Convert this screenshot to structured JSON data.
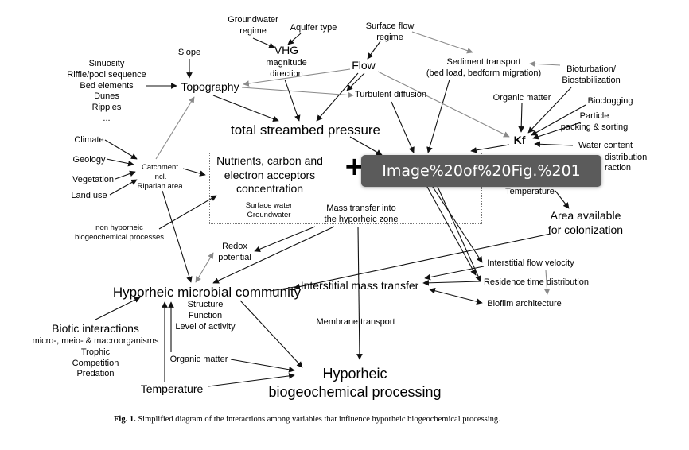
{
  "diagram": {
    "tooltip": "Image%20of%20Fig.%201",
    "plus": "+",
    "caption": {
      "prefix": "Fig. 1.",
      "text": " Simplified diagram of the interactions among variables that influence hyporheic biogeochemical processing."
    },
    "nodes": {
      "groundwater_regime": [
        "Groundwater",
        "regime"
      ],
      "aquifer_type": "Aquifer type",
      "vhg": "VHG",
      "vhg_sub": [
        "magnitude",
        "direction"
      ],
      "surface_flow_regime": [
        "Surface flow",
        "regime"
      ],
      "flow": "Flow",
      "sediment_transport": [
        "Sediment transport",
        "(bed load, bedform migration)"
      ],
      "bioturbation": [
        "Bioturbation/",
        "Biostabilization"
      ],
      "slope": "Slope",
      "morphology": [
        "Sinuosity",
        "Riffle/pool sequence",
        "Bed elements",
        "Dunes",
        "Ripples",
        "..."
      ],
      "topography": "Topography",
      "turbulent_diffusion": "Turbulent diffusion",
      "organic_matter_top": "Organic matter",
      "bioclogging": "Bioclogging",
      "particle_packing": [
        "Particle",
        "packing & sorting"
      ],
      "total_streambed_pressure": "total streambed pressure",
      "kf": "Kf",
      "water_content": "Water content",
      "distribution": "distribution",
      "fraction": "raction",
      "climate": "Climate",
      "geology": "Geology",
      "vegetation": "Vegetation",
      "land_use": "Land use",
      "catchment": [
        "Catchment",
        "incl.",
        "Riparian area"
      ],
      "nutrients": [
        "Nutrients, carbon and",
        "electron acceptors",
        "concentration"
      ],
      "nutrients_sub": [
        "Surface water",
        "Groundwater"
      ],
      "mass_transfer": [
        "Mass transfer into",
        "the hyporheic zone"
      ],
      "temperature_top": "Temperature",
      "area_available": [
        "Area available",
        "for colonization"
      ],
      "non_hyporheic": [
        "non hyporheic",
        "biogeochemical processes"
      ],
      "redox": [
        "Redox",
        "potential"
      ],
      "interstitial_flow_velocity": "Interstitial flow velocity",
      "hyporheic_microbial_community": "Hyporheic microbial community",
      "community_sub": [
        "Structure",
        "Function",
        "Level of activity"
      ],
      "interstitial_mass_transfer": "Interstitial mass transfer",
      "residence_time": "Residence time distribution",
      "biofilm_architecture": "Biofilm architecture",
      "membrane_transport": "Membrane transport",
      "biotic_interactions": "Biotic interactions",
      "biotic_sub": [
        "micro-, meio- & macroorganisms",
        "Trophic",
        "Competition",
        "Predation"
      ],
      "organic_matter_bottom": "Organic matter",
      "temperature_bottom": "Temperature",
      "hyporheic_processing": [
        "Hyporheic",
        "biogeochemical processing"
      ]
    },
    "colors": {
      "arrow_black": "#111111",
      "arrow_gray": "#8a8a8a",
      "tooltip_bg": "#5b5b5b"
    }
  }
}
